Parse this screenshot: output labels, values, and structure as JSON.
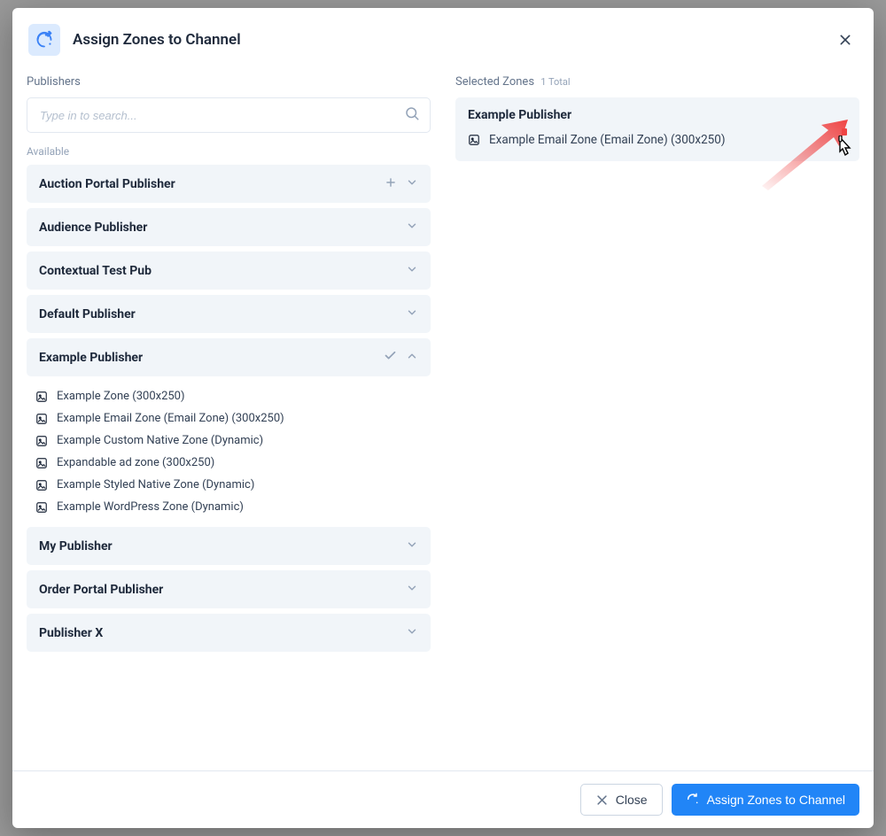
{
  "colors": {
    "modal_bg": "#ffffff",
    "backdrop": "#999999",
    "header_icon_bg": "#dbeafe",
    "header_icon_fg": "#3b82f6",
    "text_primary": "#1e293b",
    "text_secondary": "#64748b",
    "text_muted": "#94a3b8",
    "row_bg": "#f1f5f9",
    "border": "#e2e8f0",
    "btn_primary_bg": "#2185f7",
    "btn_primary_fg": "#ffffff",
    "btn_secondary_border": "#cbd5e1",
    "arrow": "#ef4444"
  },
  "header": {
    "title": "Assign Zones to Channel"
  },
  "left": {
    "section_label": "Publishers",
    "search_placeholder": "Type in to search...",
    "available_label": "Available",
    "publishers": [
      {
        "name": "Auction Portal Publisher",
        "expanded": false,
        "show_plus": true
      },
      {
        "name": "Audience Publisher",
        "expanded": false,
        "show_plus": false
      },
      {
        "name": "Contextual Test Pub",
        "expanded": false,
        "show_plus": false
      },
      {
        "name": "Default Publisher",
        "expanded": false,
        "show_plus": false
      },
      {
        "name": "Example Publisher",
        "expanded": true,
        "show_plus": false,
        "show_check": true,
        "zones": [
          {
            "label": "Example Zone (300x250)"
          },
          {
            "label": "Example Email Zone (Email Zone) (300x250)"
          },
          {
            "label": "Example Custom Native Zone (Dynamic)"
          },
          {
            "label": "Expandable ad zone (300x250)"
          },
          {
            "label": "Example Styled Native Zone (Dynamic)"
          },
          {
            "label": "Example WordPress Zone (Dynamic)"
          }
        ]
      },
      {
        "name": "My Publisher",
        "expanded": false,
        "show_plus": false
      },
      {
        "name": "Order Portal Publisher",
        "expanded": false,
        "show_plus": false
      },
      {
        "name": "Publisher X",
        "expanded": false,
        "show_plus": false
      }
    ]
  },
  "right": {
    "section_label": "Selected Zones",
    "count_text": "1 Total",
    "groups": [
      {
        "publisher": "Example Publisher",
        "zones": [
          {
            "label": "Example Email Zone (Email Zone) (300x250)"
          }
        ]
      }
    ]
  },
  "footer": {
    "close": "Close",
    "assign": "Assign Zones to Channel"
  }
}
